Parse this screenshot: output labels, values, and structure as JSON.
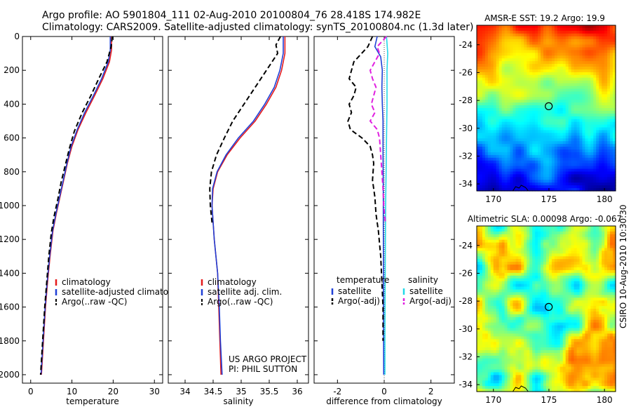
{
  "header": {
    "title_line1": "Argo profile: AO 5901804_111 02-Aug-2010 20100804_76 28.418S 174.982E",
    "title_line2": "Climatology: CARS2009. Satellite-adjusted climatology: synTS_20100804.nc (1.3d later)"
  },
  "side_label": "CSIRO 10-Aug-2010 10:30:30",
  "colors": {
    "climatology": "#e41a1c",
    "satellite": "#1f3fd6",
    "argo": "#000000",
    "satellite_salinity": "#22d8e8",
    "argo_adj_salinity": "#e020e0"
  },
  "chart_data": [
    {
      "type": "line",
      "id": "temperature",
      "xlabel": "temperature",
      "ylabel": "",
      "xlim": [
        -2,
        32
      ],
      "ylim": [
        2050,
        0
      ],
      "xticks": [
        0,
        10,
        20,
        30
      ],
      "yticks": [
        0,
        200,
        400,
        600,
        800,
        1000,
        1200,
        1400,
        1600,
        1800,
        2000
      ],
      "legend": {
        "placement": "lower-right",
        "entries": [
          "climatology",
          "satellite-adjusted climatology",
          "Argo(..raw -QC)"
        ]
      },
      "series": [
        {
          "name": "climatology",
          "style": "solid",
          "color": "climatology",
          "points": [
            [
              19.6,
              0
            ],
            [
              19.6,
              80
            ],
            [
              19.1,
              150
            ],
            [
              17.5,
              250
            ],
            [
              15.5,
              350
            ],
            [
              13.4,
              450
            ],
            [
              11.5,
              550
            ],
            [
              10.0,
              650
            ],
            [
              8.9,
              750
            ],
            [
              8.0,
              850
            ],
            [
              7.1,
              950
            ],
            [
              6.2,
              1050
            ],
            [
              5.4,
              1150
            ],
            [
              4.7,
              1300
            ],
            [
              4.1,
              1450
            ],
            [
              3.6,
              1600
            ],
            [
              3.1,
              1800
            ],
            [
              2.6,
              2000
            ]
          ]
        },
        {
          "name": "satellite-adjusted climatology",
          "style": "solid",
          "color": "satellite",
          "points": [
            [
              19.3,
              0
            ],
            [
              19.3,
              80
            ],
            [
              18.8,
              150
            ],
            [
              17.2,
              250
            ],
            [
              15.2,
              350
            ],
            [
              13.1,
              450
            ],
            [
              11.3,
              550
            ],
            [
              9.8,
              650
            ],
            [
              8.8,
              750
            ],
            [
              7.9,
              850
            ],
            [
              7.0,
              950
            ],
            [
              6.1,
              1050
            ],
            [
              5.3,
              1150
            ],
            [
              4.6,
              1300
            ],
            [
              4.0,
              1450
            ],
            [
              3.5,
              1600
            ],
            [
              3.0,
              1800
            ],
            [
              2.5,
              2000
            ]
          ]
        },
        {
          "name": "Argo(..raw -QC)",
          "style": "dashed",
          "color": "argo",
          "points": [
            [
              19.8,
              0
            ],
            [
              19.5,
              60
            ],
            [
              18.5,
              150
            ],
            [
              16.5,
              250
            ],
            [
              14.6,
              350
            ],
            [
              12.5,
              450
            ],
            [
              10.6,
              560
            ],
            [
              9.4,
              660
            ],
            [
              8.4,
              760
            ],
            [
              7.4,
              860
            ],
            [
              6.6,
              960
            ],
            [
              5.7,
              1060
            ],
            [
              5.0,
              1160
            ],
            [
              4.4,
              1300
            ],
            [
              3.9,
              1450
            ],
            [
              3.4,
              1600
            ],
            [
              2.9,
              1800
            ],
            [
              2.4,
              2000
            ]
          ]
        }
      ]
    },
    {
      "type": "line",
      "id": "salinity",
      "xlabel": "salinity",
      "ylabel": "",
      "xlim": [
        33.7,
        36.2
      ],
      "ylim": [
        2050,
        0
      ],
      "xticks": [
        34,
        34.5,
        35,
        35.5,
        36
      ],
      "xtick_labels": [
        "34",
        "34.5",
        "35",
        "35.5",
        "36"
      ],
      "legend": {
        "placement": "lower-right",
        "entries": [
          "climatology",
          "satellite adj. clim.",
          "Argo(..raw -QC)"
        ]
      },
      "annotation": [
        "US ARGO PROJECT",
        "PI: PHIL SUTTON"
      ],
      "series": [
        {
          "name": "climatology",
          "style": "solid",
          "color": "climatology",
          "points": [
            [
              35.78,
              0
            ],
            [
              35.78,
              100
            ],
            [
              35.72,
              200
            ],
            [
              35.62,
              300
            ],
            [
              35.45,
              400
            ],
            [
              35.25,
              500
            ],
            [
              34.98,
              600
            ],
            [
              34.75,
              700
            ],
            [
              34.58,
              800
            ],
            [
              34.5,
              900
            ],
            [
              34.48,
              1000
            ],
            [
              34.5,
              1100
            ],
            [
              34.52,
              1200
            ],
            [
              34.55,
              1300
            ],
            [
              34.58,
              1400
            ],
            [
              34.6,
              1600
            ],
            [
              34.62,
              1800
            ],
            [
              34.64,
              2000
            ]
          ]
        },
        {
          "name": "satellite adj. clim.",
          "style": "solid",
          "color": "satellite",
          "points": [
            [
              35.75,
              0
            ],
            [
              35.75,
              100
            ],
            [
              35.69,
              200
            ],
            [
              35.59,
              300
            ],
            [
              35.42,
              400
            ],
            [
              35.22,
              500
            ],
            [
              34.95,
              600
            ],
            [
              34.73,
              700
            ],
            [
              34.57,
              800
            ],
            [
              34.49,
              900
            ],
            [
              34.48,
              1000
            ],
            [
              34.5,
              1100
            ],
            [
              34.52,
              1200
            ],
            [
              34.55,
              1300
            ],
            [
              34.58,
              1400
            ],
            [
              34.61,
              1600
            ],
            [
              34.63,
              1800
            ],
            [
              34.66,
              2000
            ]
          ]
        },
        {
          "name": "Argo(..raw -QC)",
          "style": "dashed",
          "color": "argo",
          "points": [
            [
              35.7,
              0
            ],
            [
              35.62,
              50
            ],
            [
              35.65,
              100
            ],
            [
              35.45,
              200
            ],
            [
              35.25,
              300
            ],
            [
              35.05,
              400
            ],
            [
              34.85,
              500
            ],
            [
              34.7,
              600
            ],
            [
              34.56,
              700
            ],
            [
              34.47,
              800
            ],
            [
              34.44,
              900
            ],
            [
              34.45,
              1000
            ],
            [
              34.48,
              1100
            ]
          ]
        }
      ]
    },
    {
      "type": "line",
      "id": "difference",
      "xlabel": "difference from climatology",
      "ylabel": "",
      "xlim": [
        -3.0,
        3.0
      ],
      "ylim": [
        2050,
        0
      ],
      "xticks": [
        -2,
        0,
        2
      ],
      "legend": {
        "placement": "lower-center",
        "columns": [
          {
            "heading": "temperature",
            "entries": [
              "satellite",
              "Argo(-adj)"
            ]
          },
          {
            "heading": "salinity",
            "entries": [
              "satellite",
              "Argo(-adj)"
            ]
          }
        ]
      },
      "series": [
        {
          "name": "temperature satellite",
          "style": "solid",
          "color": "satellite",
          "points": [
            [
              -0.3,
              0
            ],
            [
              -0.4,
              60
            ],
            [
              -0.15,
              120
            ],
            [
              -0.08,
              200
            ],
            [
              -0.1,
              300
            ],
            [
              -0.08,
              400
            ],
            [
              -0.05,
              500
            ],
            [
              -0.05,
              700
            ],
            [
              -0.04,
              900
            ],
            [
              -0.04,
              1100
            ],
            [
              -0.03,
              1400
            ],
            [
              -0.03,
              1700
            ],
            [
              -0.02,
              2000
            ]
          ]
        },
        {
          "name": "temperature Argo(-adj)",
          "style": "dashed",
          "color": "argo",
          "points": [
            [
              -0.5,
              0
            ],
            [
              -0.7,
              60
            ],
            [
              -1.3,
              150
            ],
            [
              -1.5,
              250
            ],
            [
              -1.2,
              300
            ],
            [
              -1.3,
              350
            ],
            [
              -1.5,
              400
            ],
            [
              -1.4,
              450
            ],
            [
              -1.55,
              500
            ],
            [
              -1.45,
              550
            ],
            [
              -0.95,
              600
            ],
            [
              -0.6,
              650
            ],
            [
              -0.5,
              700
            ],
            [
              -0.45,
              750
            ],
            [
              -0.5,
              850
            ],
            [
              -0.4,
              950
            ],
            [
              -0.35,
              1050
            ],
            [
              -0.25,
              1150
            ],
            [
              -0.15,
              1300
            ],
            [
              -0.1,
              1450
            ],
            [
              -0.05,
              1600
            ],
            [
              -0.05,
              1800
            ]
          ]
        },
        {
          "name": "salinity satellite",
          "style": "solid",
          "color": "satellite_salinity",
          "points": [
            [
              0.1,
              0
            ],
            [
              0.15,
              100
            ],
            [
              0.12,
              200
            ],
            [
              0.12,
              400
            ],
            [
              0.1,
              600
            ],
            [
              0.08,
              800
            ],
            [
              0.06,
              1000
            ],
            [
              0.05,
              1200
            ],
            [
              0.04,
              1500
            ],
            [
              0.03,
              1800
            ],
            [
              0.03,
              2000
            ]
          ]
        },
        {
          "name": "salinity Argo(-adj)",
          "style": "dashed",
          "color": "argo_adj_salinity",
          "points": [
            [
              0.1,
              0
            ],
            [
              -0.3,
              60
            ],
            [
              -0.2,
              100
            ],
            [
              -0.6,
              200
            ],
            [
              -0.5,
              250
            ],
            [
              -0.35,
              300
            ],
            [
              -0.45,
              350
            ],
            [
              -0.55,
              400
            ],
            [
              -0.4,
              450
            ],
            [
              -0.6,
              500
            ],
            [
              -0.3,
              550
            ],
            [
              -0.2,
              600
            ],
            [
              -0.15,
              700
            ],
            [
              -0.1,
              800
            ],
            [
              -0.05,
              900
            ],
            [
              -0.02,
              1000
            ],
            [
              0.05,
              1100
            ]
          ]
        }
      ],
      "zero_line": true
    },
    {
      "type": "heatmap",
      "id": "sst_map",
      "title": "AMSR-E SST: 19.2 Argo: 19.9",
      "xlim": [
        168.5,
        181
      ],
      "ylim": [
        -34.5,
        -22.6
      ],
      "xticks": [
        170,
        175,
        180
      ],
      "yticks": [
        -24,
        -26,
        -28,
        -30,
        -32,
        -34
      ],
      "marker": {
        "lon": 174.982,
        "lat": -28.418
      }
    },
    {
      "type": "heatmap",
      "id": "sla_map",
      "title": "Altimetric SLA: 0.00098 Argo: -0.067",
      "xlim": [
        168.5,
        181
      ],
      "ylim": [
        -34.5,
        -22.6
      ],
      "xticks": [
        170,
        175,
        180
      ],
      "yticks": [
        -24,
        -26,
        -28,
        -30,
        -32,
        -34
      ],
      "marker": {
        "lon": 174.982,
        "lat": -28.418
      }
    }
  ]
}
